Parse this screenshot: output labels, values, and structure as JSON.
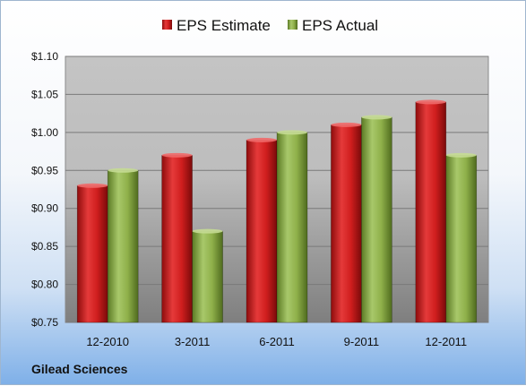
{
  "chart_data": {
    "type": "bar",
    "categories": [
      "12-2010",
      "3-2011",
      "6-2011",
      "9-2011",
      "12-2011"
    ],
    "series": [
      {
        "name": "EPS Estimate",
        "values": [
          0.93,
          0.97,
          0.99,
          1.01,
          1.04
        ],
        "color": "#d42020"
      },
      {
        "name": "EPS Actual",
        "values": [
          0.95,
          0.87,
          1.0,
          1.02,
          0.97
        ],
        "color": "#8fb04a"
      }
    ],
    "y_ticks": [
      "$0.75",
      "$0.80",
      "$0.85",
      "$0.90",
      "$0.95",
      "$1.00",
      "$1.05",
      "$1.10"
    ],
    "ylim": [
      0.75,
      1.1
    ],
    "grid": true,
    "legend_position": "top"
  },
  "footer": {
    "company": "Gilead Sciences"
  }
}
